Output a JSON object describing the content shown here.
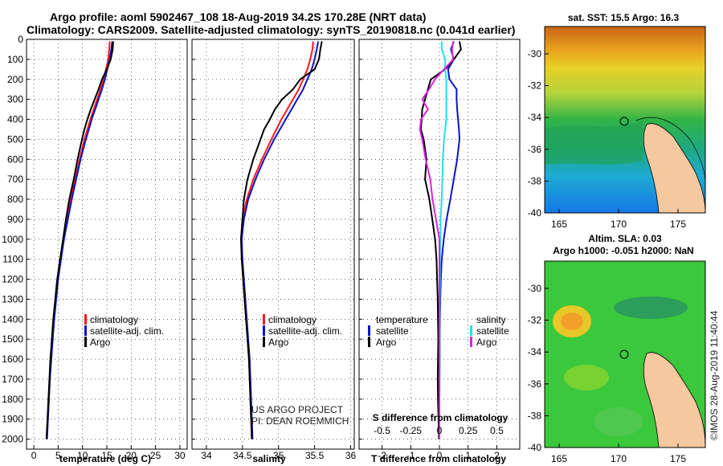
{
  "header": {
    "line1": "Argo profile: aoml 5902467_108 18-Aug-2019 34.2S 170.28E (NRT data)",
    "line2": "Climatology: CARS2009. Satellite-adjusted climatology: synTS_20190818.nc (0.041d earlier)"
  },
  "colors": {
    "climatology": "#ff1a1a",
    "satellite": "#0a14c8",
    "argo": "#000000",
    "sat_salinity": "#22e0ee",
    "argo_salinity": "#dd22dd"
  },
  "map_sst": {
    "title": "sat. SST: 15.5 Argo: 16.3",
    "x_ticks": [
      "165",
      "170",
      "175"
    ],
    "y_ticks": [
      "-30",
      "-32",
      "-34",
      "-36",
      "-38",
      "-40"
    ]
  },
  "map_sla": {
    "title_line1": "Altim. SLA: 0.03",
    "title_line2": "Argo h1000: -0.051 h2000: NaN",
    "x_ticks": [
      "165",
      "170",
      "175"
    ],
    "y_ticks": [
      "-30",
      "-32",
      "-34",
      "-36",
      "-38",
      "-40"
    ]
  },
  "credit": {
    "line1": "US ARGO PROJECT",
    "line2": "PI: DEAN ROEMMICH",
    "imos": "©IMOS 28-Aug-2019 11:40:44"
  },
  "chart_data": [
    {
      "type": "line",
      "panel": "temperature",
      "xlabel": "temperature (deg C)",
      "x_ticks": [
        "0",
        "5",
        "10",
        "15",
        "20",
        "25",
        "30"
      ],
      "xlim": [
        -1.5,
        31.5
      ],
      "y_ticks": [
        "0",
        "100",
        "200",
        "300",
        "400",
        "500",
        "600",
        "700",
        "800",
        "900",
        "1000",
        "1100",
        "1200",
        "1300",
        "1400",
        "1500",
        "1600",
        "1700",
        "1800",
        "1900",
        "2000"
      ],
      "ylim": [
        0,
        2050
      ],
      "depth": [
        10,
        50,
        100,
        150,
        200,
        250,
        300,
        350,
        400,
        450,
        500,
        600,
        700,
        800,
        900,
        1000,
        1100,
        1200,
        1300,
        1400,
        1500,
        1600,
        1700,
        1800,
        1900,
        2000
      ],
      "legend": [
        "climatology",
        "satellite-adj. clim.",
        "Argo"
      ],
      "series": [
        {
          "name": "climatology",
          "values": [
            15.6,
            15.5,
            15.3,
            14.8,
            14.3,
            13.7,
            13.0,
            12.3,
            11.6,
            11.0,
            10.4,
            9.4,
            8.5,
            7.6,
            6.8,
            6.1,
            5.5,
            4.9,
            4.5,
            4.1,
            3.8,
            3.5,
            3.3,
            3.1,
            2.9,
            2.7
          ]
        },
        {
          "name": "satellite-adj. clim.",
          "values": [
            16.1,
            15.9,
            15.6,
            15.1,
            14.6,
            14.0,
            13.3,
            12.6,
            11.9,
            11.3,
            10.7,
            9.6,
            8.7,
            7.8,
            7.0,
            6.2,
            5.6,
            5.0,
            4.6,
            4.2,
            3.9,
            3.6,
            3.3,
            3.1,
            2.9,
            2.7
          ]
        },
        {
          "name": "Argo",
          "values": [
            16.3,
            16.2,
            15.8,
            15.0,
            14.0,
            13.3,
            12.5,
            11.7,
            11.0,
            10.4,
            9.9,
            9.0,
            8.2,
            7.3,
            6.6,
            6.0,
            5.4,
            4.8,
            4.4,
            4.0,
            3.7,
            3.4,
            3.2,
            3.0,
            2.8,
            2.6
          ]
        }
      ]
    },
    {
      "type": "line",
      "panel": "salinity",
      "xlabel": "salinity",
      "x_ticks": [
        "34",
        "34.5",
        "35",
        "35.5",
        "36"
      ],
      "xlim": [
        33.8,
        36.05
      ],
      "y_ticks": [],
      "ylim": [
        0,
        2050
      ],
      "depth": [
        10,
        50,
        100,
        150,
        200,
        250,
        300,
        350,
        400,
        450,
        500,
        600,
        700,
        800,
        900,
        1000,
        1100,
        1200,
        1300,
        1400,
        1500,
        1600,
        1700,
        1800,
        1900,
        2000
      ],
      "legend": [
        "climatology",
        "satellite-adj. clim.",
        "Argo"
      ],
      "series": [
        {
          "name": "climatology",
          "values": [
            35.48,
            35.47,
            35.44,
            35.4,
            35.34,
            35.28,
            35.2,
            35.12,
            35.04,
            34.97,
            34.9,
            34.77,
            34.65,
            34.56,
            34.5,
            34.48,
            34.49,
            34.51,
            34.53,
            34.55,
            34.57,
            34.59,
            34.6,
            34.61,
            34.62,
            34.63
          ]
        },
        {
          "name": "satellite-adj. clim.",
          "values": [
            35.55,
            35.53,
            35.5,
            35.46,
            35.4,
            35.34,
            35.26,
            35.18,
            35.1,
            35.02,
            34.94,
            34.8,
            34.68,
            34.58,
            34.52,
            34.49,
            34.5,
            34.52,
            34.54,
            34.56,
            34.58,
            34.6,
            34.61,
            34.62,
            34.63,
            34.64
          ]
        },
        {
          "name": "Argo",
          "values": [
            35.6,
            35.58,
            35.56,
            35.5,
            35.3,
            35.2,
            35.05,
            34.95,
            34.88,
            34.8,
            34.75,
            34.65,
            34.57,
            34.52,
            34.5,
            34.48,
            34.49,
            34.51,
            34.53,
            34.55,
            34.57,
            34.59,
            34.6,
            34.61,
            34.62,
            34.63
          ]
        }
      ]
    },
    {
      "type": "line",
      "panel": "difference",
      "xlabel": "T difference from climatology",
      "xlabel_top": "S difference from climatology",
      "x_ticks": [
        "-2",
        "-1",
        "0",
        "1",
        "2"
      ],
      "x_ticks_top": [
        "-0.5",
        "-0.25",
        "0",
        "0.25",
        "0.5"
      ],
      "xlim": [
        -2.8,
        2.8
      ],
      "s_xlim": [
        -0.7,
        0.7
      ],
      "y_ticks": [],
      "ylim": [
        0,
        2050
      ],
      "depth": [
        10,
        50,
        100,
        150,
        200,
        250,
        300,
        350,
        400,
        450,
        500,
        600,
        700,
        800,
        900,
        1000,
        1100,
        1200,
        1300,
        1400,
        1500,
        1600,
        1700,
        1800,
        1900,
        2000
      ],
      "legend_temperature_heading": "temperature",
      "legend_salinity_heading": "salinity",
      "legend_temperature": [
        "satellite",
        "Argo"
      ],
      "legend_salinity": [
        "satellite",
        "Argo"
      ],
      "series": [
        {
          "name": "temperature satellite",
          "units": "T",
          "values": [
            0.5,
            0.4,
            0.5,
            0.3,
            0.35,
            0.6,
            0.6,
            0.62,
            0.65,
            0.68,
            0.7,
            0.62,
            0.5,
            0.38,
            0.25,
            0.15,
            0.08,
            0.05,
            0.03,
            0.02,
            0.01,
            0.01,
            0.0,
            0.0,
            0.0,
            0.0
          ]
        },
        {
          "name": "temperature Argo",
          "units": "T",
          "values": [
            0.7,
            0.75,
            0.5,
            0.2,
            -0.3,
            -0.4,
            -0.5,
            -0.6,
            -0.62,
            -0.65,
            -0.55,
            -0.45,
            -0.5,
            -0.35,
            -0.25,
            -0.15,
            -0.1,
            -0.08,
            -0.06,
            -0.05,
            -0.04,
            -0.05,
            -0.06,
            -0.05,
            -0.03,
            -0.02
          ]
        },
        {
          "name": "salinity satellite",
          "units": "S",
          "values": [
            0.02,
            0.02,
            0.05,
            0.05,
            0.06,
            0.06,
            0.06,
            0.06,
            0.06,
            0.05,
            0.04,
            0.03,
            0.025,
            0.02,
            0.01,
            0.01,
            0.005,
            0.005,
            0.003,
            0.003,
            0.002,
            0.002,
            0.002,
            0.0,
            0.0,
            0.0
          ]
        },
        {
          "name": "salinity Argo",
          "units": "S",
          "values": [
            0.12,
            0.11,
            0.12,
            0.04,
            -0.04,
            -0.09,
            -0.15,
            -0.1,
            -0.16,
            -0.17,
            -0.15,
            -0.12,
            -0.08,
            -0.06,
            -0.03,
            0.0,
            0.0,
            0.0,
            0.0,
            0.0,
            0.0,
            0.0,
            0.0,
            0.0,
            0.0,
            0.0
          ]
        }
      ]
    }
  ]
}
